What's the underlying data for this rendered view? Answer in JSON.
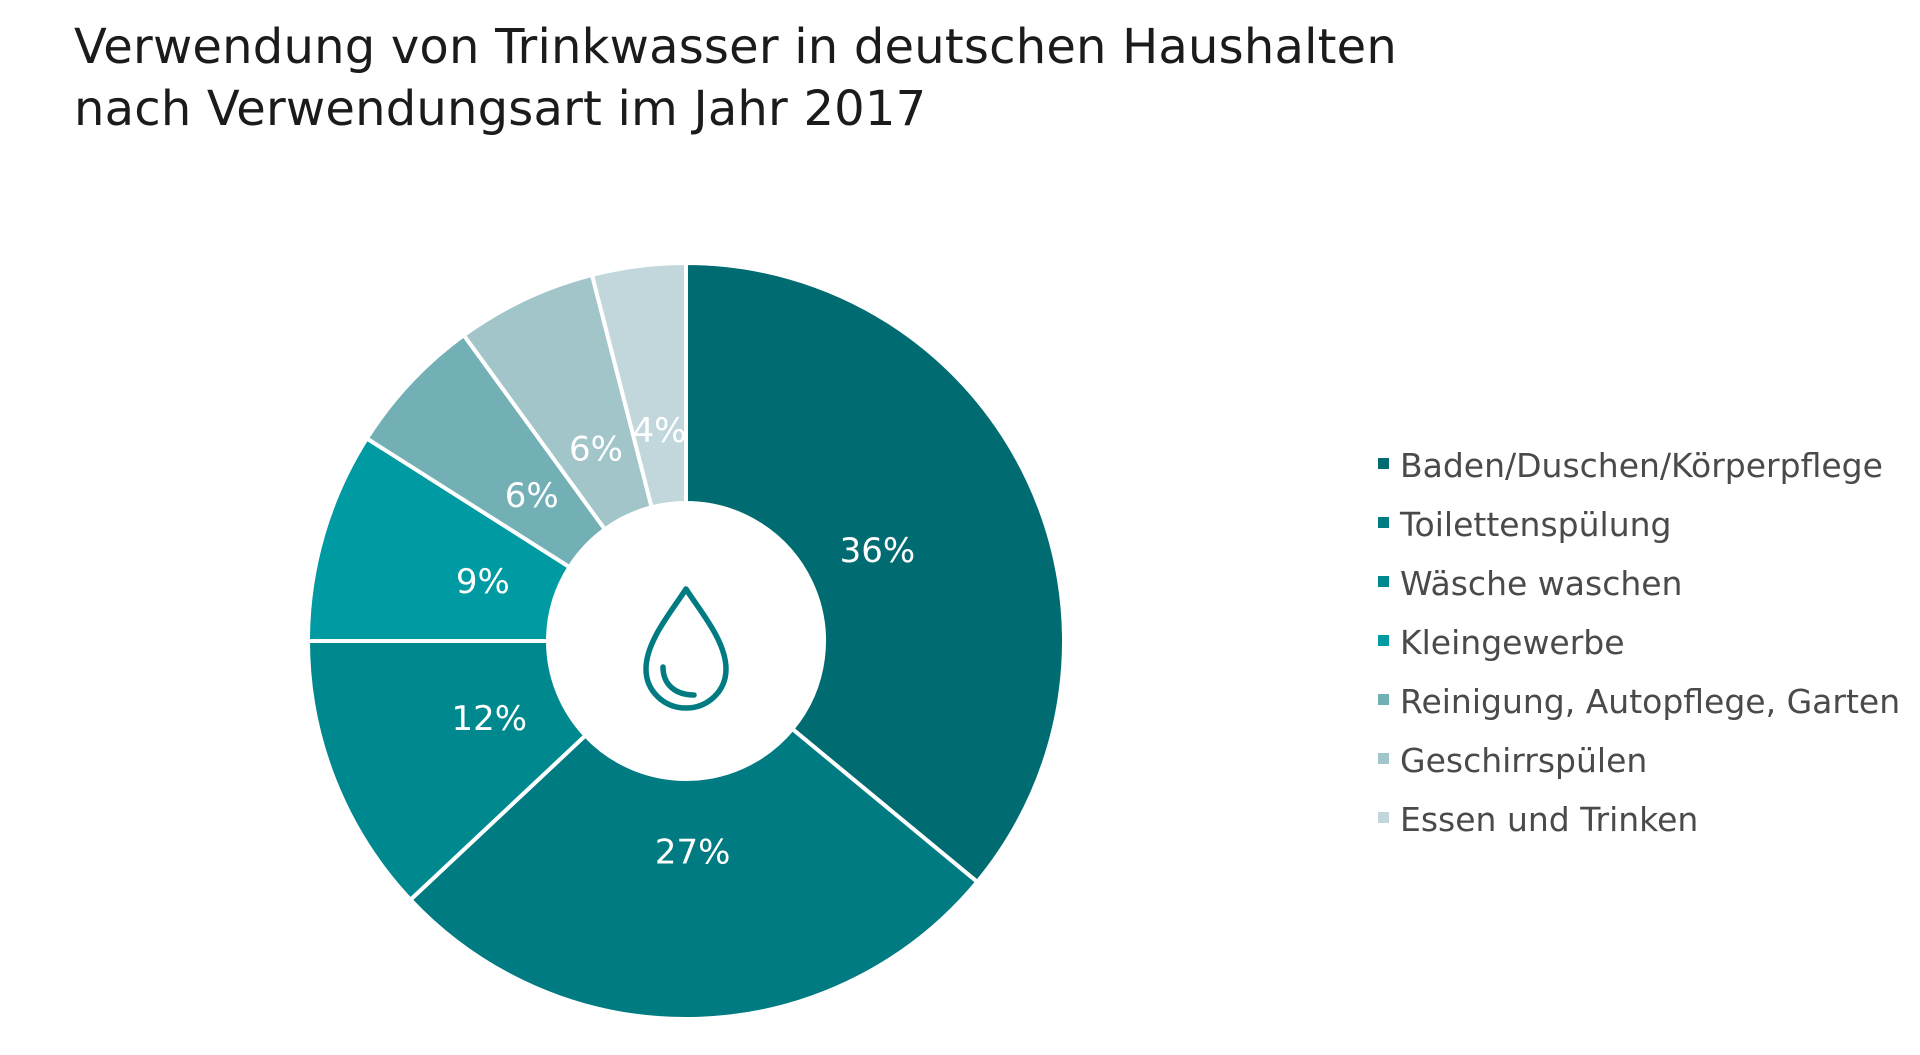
{
  "chart_data": {
    "type": "pie",
    "donut": true,
    "title_lines": [
      "Verwendung von Trinkwasser in deutschen Haushalten",
      "nach Verwendungsart im Jahr 2017"
    ],
    "center_icon": "water-drop-icon",
    "value_suffix": "%",
    "legend_position": "right",
    "slices": [
      {
        "label": "Baden/Duschen/Körperpflege",
        "value": 36,
        "color": "#006c72"
      },
      {
        "label": "Toilettenspülung",
        "value": 27,
        "color": "#007b82"
      },
      {
        "label": "Wäsche waschen",
        "value": 12,
        "color": "#00888f"
      },
      {
        "label": "Kleingewerbe",
        "value": 9,
        "color": "#009aa2"
      },
      {
        "label": "Reinigung, Autopflege, Garten",
        "value": 6,
        "color": "#72b0b6"
      },
      {
        "label": "Geschirrspülen",
        "value": 6,
        "color": "#a2c5ca"
      },
      {
        "label": "Essen und Trinken",
        "value": 4,
        "color": "#c2d7dc"
      }
    ]
  }
}
